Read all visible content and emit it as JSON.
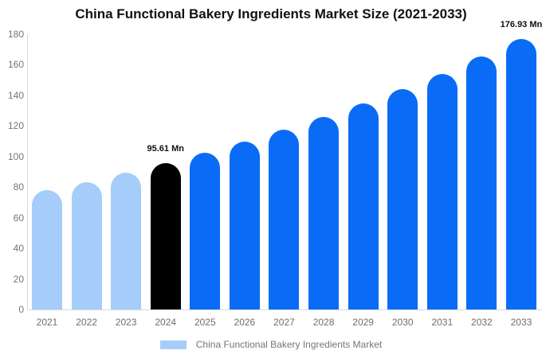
{
  "header": {
    "title": "China Functional Bakery Ingredients Market Size (2021-2033)"
  },
  "chart_data": {
    "type": "bar",
    "title": "China Functional Bakery Ingredients Market Size (2021-2033)",
    "categories": [
      "2021",
      "2022",
      "2023",
      "2024",
      "2025",
      "2026",
      "2027",
      "2028",
      "2029",
      "2030",
      "2031",
      "2032",
      "2033"
    ],
    "values": [
      77.9,
      83.4,
      89.3,
      95.61,
      102.4,
      109.6,
      117.4,
      125.7,
      134.5,
      144.1,
      154.2,
      165.2,
      176.93
    ],
    "unit": "Mn",
    "labeled_points": [
      {
        "category": "2024",
        "label": "95.61 Mn"
      },
      {
        "category": "2033",
        "label": "176.93 Mn"
      }
    ],
    "bar_colors": [
      "#a6cdfa",
      "#a6cdfa",
      "#a6cdfa",
      "#000000",
      "#0a6cf6",
      "#0a6cf6",
      "#0a6cf6",
      "#0a6cf6",
      "#0a6cf6",
      "#0a6cf6",
      "#0a6cf6",
      "#0a6cf6",
      "#0a6cf6"
    ],
    "y_ticks": [
      0,
      20,
      40,
      60,
      80,
      100,
      120,
      140,
      160,
      180
    ],
    "ylim": [
      0,
      180
    ],
    "xlabel": "",
    "ylabel": "",
    "grid": false,
    "legend_position": "bottom"
  },
  "legend": {
    "swatch_color": "#a6cdfa",
    "label": "China Functional Bakery Ingredients Market"
  },
  "colors": {
    "historical_bar": "#a6cdfa",
    "base_year_bar": "#000000",
    "forecast_bar": "#0a6cf6",
    "axis_text": "#757575",
    "axis_line": "#d9d9d9",
    "title_text": "#111111"
  }
}
